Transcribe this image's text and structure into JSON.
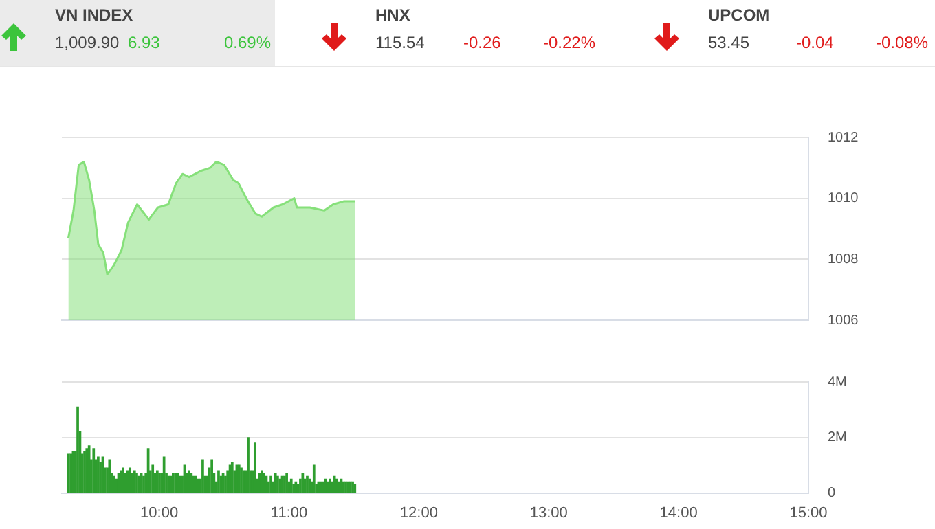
{
  "chart_data": [
    {
      "type": "other",
      "annotations": [
        "VN INDEX",
        "1,009.90",
        "6.93",
        "0.69%",
        "HNX",
        "115.54",
        "-0.26",
        "-0.22%",
        "UPCOM",
        "53.45",
        "-0.04",
        "-0.08%"
      ]
    },
    {
      "type": "area",
      "tick_labels": "y",
      "grid": "y",
      "xlim": [
        9.25,
        15
      ],
      "ylim": [
        1006,
        1012
      ],
      "yticks": [
        1006,
        1008,
        1010,
        1012
      ],
      "series": [
        {
          "color": "#86e07a",
          "x": [
            9.3,
            9.34,
            9.38,
            9.42,
            9.46,
            9.5,
            9.53,
            9.57,
            9.6,
            9.65,
            9.71,
            9.76,
            9.83,
            9.92,
            9.99,
            10.07,
            10.13,
            10.18,
            10.23,
            10.32,
            10.39,
            10.44,
            10.5,
            10.57,
            10.61,
            10.67,
            10.74,
            10.79,
            10.88,
            10.95,
            11.04,
            11.06,
            11.16,
            11.27,
            11.34,
            11.42,
            11.51
          ],
          "values": [
            1008.7,
            1009.6,
            1011.1,
            1011.2,
            1010.6,
            1009.6,
            1008.5,
            1008.2,
            1007.5,
            1007.8,
            1008.3,
            1009.2,
            1009.8,
            1009.3,
            1009.7,
            1009.8,
            1010.5,
            1010.8,
            1010.7,
            1010.9,
            1011.0,
            1011.2,
            1011.1,
            1010.6,
            1010.5,
            1010.0,
            1009.5,
            1009.4,
            1009.7,
            1009.8,
            1010.0,
            1009.7,
            1009.7,
            1009.6,
            1009.8,
            1009.9,
            1009.9
          ]
        }
      ]
    },
    {
      "type": "bar",
      "grid": "y",
      "xlim": [
        9.25,
        15
      ],
      "xticks": [
        {
          "value": 10,
          "label": "10:00"
        },
        {
          "value": 11,
          "label": "11:00"
        },
        {
          "value": 12,
          "label": "12:00"
        },
        {
          "value": 13,
          "label": "13:00"
        },
        {
          "value": 14,
          "label": "14:00"
        },
        {
          "value": 15,
          "label": "15:00"
        }
      ],
      "ylim": [
        0,
        4
      ],
      "yticks": [
        0,
        {
          "value": 2,
          "label": "2M"
        },
        {
          "value": 4,
          "label": "4M"
        }
      ],
      "series": [
        {
          "color": "#2f9e2f",
          "x": [
            9.302,
            9.32,
            9.337,
            9.355,
            9.372,
            9.39,
            9.407,
            9.425,
            9.442,
            9.46,
            9.477,
            9.495,
            9.512,
            9.53,
            9.547,
            9.565,
            9.582,
            9.6,
            9.617,
            9.635,
            9.652,
            9.67,
            9.687,
            9.705,
            9.722,
            9.74,
            9.757,
            9.775,
            9.792,
            9.81,
            9.827,
            9.845,
            9.862,
            9.88,
            9.897,
            9.915,
            9.932,
            9.95,
            9.967,
            9.985,
            10.002,
            10.02,
            10.037,
            10.055,
            10.072,
            10.09,
            10.107,
            10.125,
            10.142,
            10.16,
            10.177,
            10.195,
            10.212,
            10.23,
            10.247,
            10.265,
            10.282,
            10.3,
            10.317,
            10.335,
            10.352,
            10.37,
            10.387,
            10.405,
            10.422,
            10.44,
            10.457,
            10.475,
            10.492,
            10.51,
            10.527,
            10.545,
            10.562,
            10.58,
            10.597,
            10.615,
            10.632,
            10.65,
            10.667,
            10.685,
            10.702,
            10.72,
            10.737,
            10.755,
            10.772,
            10.79,
            10.807,
            10.825,
            10.842,
            10.86,
            10.877,
            10.895,
            10.912,
            10.93,
            10.947,
            10.965,
            10.982,
            11.0,
            11.017,
            11.035,
            11.052,
            11.07,
            11.087,
            11.105,
            11.122,
            11.14,
            11.157,
            11.175,
            11.192,
            11.21,
            11.227,
            11.245,
            11.262,
            11.28,
            11.297,
            11.315,
            11.332,
            11.35,
            11.367,
            11.385,
            11.402,
            11.42,
            11.437,
            11.455,
            11.472,
            11.49,
            11.507
          ],
          "values": [
            1.4,
            1.4,
            1.5,
            1.5,
            3.1,
            2.2,
            1.4,
            1.5,
            1.6,
            1.7,
            1.2,
            1.6,
            1.2,
            1.3,
            1.1,
            1.3,
            0.9,
            0.9,
            1.2,
            0.7,
            0.6,
            0.5,
            0.7,
            0.8,
            0.9,
            0.7,
            0.8,
            0.9,
            0.7,
            0.8,
            0.7,
            0.6,
            0.7,
            0.6,
            0.7,
            1.6,
            0.8,
            1.0,
            0.7,
            0.8,
            0.7,
            0.7,
            1.3,
            0.7,
            0.6,
            0.6,
            0.7,
            0.7,
            0.7,
            0.6,
            0.6,
            1.0,
            0.7,
            0.8,
            0.7,
            0.6,
            0.6,
            0.5,
            0.5,
            1.2,
            0.6,
            0.6,
            0.9,
            1.2,
            0.7,
            0.4,
            0.8,
            0.6,
            0.7,
            0.6,
            0.8,
            1.0,
            1.1,
            0.8,
            1.0,
            1.0,
            0.9,
            0.8,
            0.8,
            2.0,
            0.8,
            0.8,
            1.8,
            0.5,
            0.7,
            0.8,
            0.7,
            0.6,
            0.4,
            0.6,
            0.4,
            0.7,
            0.6,
            0.5,
            0.6,
            0.6,
            0.7,
            0.4,
            0.5,
            0.3,
            0.4,
            0.3,
            0.5,
            0.7,
            0.5,
            0.6,
            0.5,
            0.4,
            1.0,
            0.3,
            0.4,
            0.4,
            0.4,
            0.5,
            0.4,
            0.5,
            0.4,
            0.6,
            0.5,
            0.4,
            0.5,
            0.4,
            0.4,
            0.4,
            0.4,
            0.4,
            0.3
          ]
        }
      ]
    }
  ]
}
